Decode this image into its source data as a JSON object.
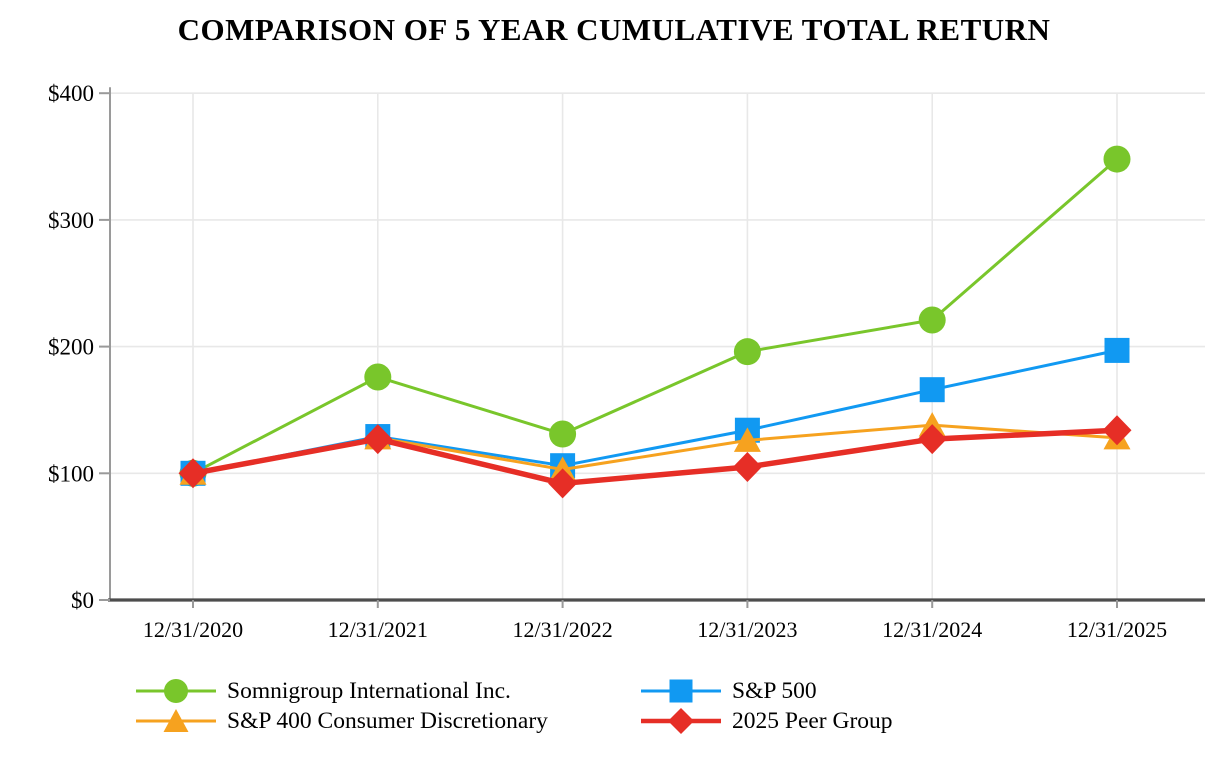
{
  "title": "COMPARISON OF 5 YEAR CUMULATIVE TOTAL RETURN",
  "chart_data": {
    "type": "line",
    "title": "COMPARISON OF 5 YEAR CUMULATIVE TOTAL RETURN",
    "categories": [
      "12/31/2020",
      "12/31/2021",
      "12/31/2022",
      "12/31/2023",
      "12/31/2024",
      "12/31/2025"
    ],
    "series": [
      {
        "name": "Somnigroup International Inc.",
        "marker": "circle",
        "color": "#79C62B",
        "line_width": 3,
        "values": [
          100,
          176,
          131,
          196,
          221,
          348
        ]
      },
      {
        "name": "S&P 500",
        "marker": "square",
        "color": "#1199F2",
        "line_width": 3,
        "values": [
          100,
          129,
          106,
          134,
          166,
          197
        ]
      },
      {
        "name": "S&P 400 Consumer Discretionary",
        "marker": "triangle",
        "color": "#F6A21F",
        "line_width": 3,
        "values": [
          100,
          128,
          103,
          126,
          138,
          128
        ]
      },
      {
        "name": "2025 Peer Group",
        "marker": "diamond",
        "color": "#E62E26",
        "line_width": 5.5,
        "values": [
          100,
          127,
          92,
          105,
          127,
          134
        ]
      }
    ],
    "xlabel": "",
    "ylabel": "",
    "ylim": [
      0,
      400
    ],
    "y_ticks": [
      {
        "value": 0,
        "label": "$0"
      },
      {
        "value": 100,
        "label": "$100"
      },
      {
        "value": 200,
        "label": "$200"
      },
      {
        "value": 300,
        "label": "$300"
      },
      {
        "value": 400,
        "label": "$400"
      }
    ],
    "grid": true,
    "legend_position": "bottom"
  },
  "style_colors": {
    "grid_line": "#E8E8E8",
    "y_axis_line": "#9A9A9A",
    "x_axis_line": "#4D4D4D",
    "tick_mark": "#9A9A9A",
    "label_text": "#000000"
  }
}
